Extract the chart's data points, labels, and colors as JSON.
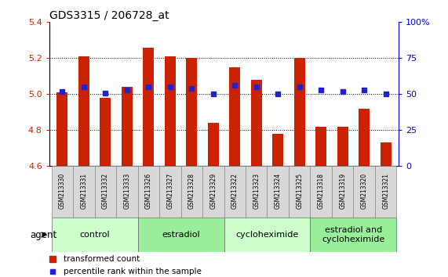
{
  "title": "GDS3315 / 206728_at",
  "samples": [
    "GSM213330",
    "GSM213331",
    "GSM213332",
    "GSM213333",
    "GSM213326",
    "GSM213327",
    "GSM213328",
    "GSM213329",
    "GSM213322",
    "GSM213323",
    "GSM213324",
    "GSM213325",
    "GSM213318",
    "GSM213319",
    "GSM213320",
    "GSM213321"
  ],
  "bar_values": [
    5.01,
    5.21,
    4.98,
    5.04,
    5.26,
    5.21,
    5.2,
    4.84,
    5.15,
    5.08,
    4.78,
    5.2,
    4.82,
    4.82,
    4.92,
    4.73
  ],
  "percentile_values": [
    52,
    55,
    51,
    53,
    55,
    55,
    54,
    50,
    56,
    55,
    50,
    55,
    53,
    52,
    53,
    50
  ],
  "ymin": 4.6,
  "ymax": 5.4,
  "yticks": [
    4.6,
    4.8,
    5.0,
    5.2,
    5.4
  ],
  "bar_color": "#cc2200",
  "dot_color": "#2222cc",
  "groups": [
    {
      "label": "control",
      "start": 0,
      "end": 3,
      "color": "#ccffcc"
    },
    {
      "label": "estradiol",
      "start": 4,
      "end": 7,
      "color": "#99ee99"
    },
    {
      "label": "cycloheximide",
      "start": 8,
      "end": 11,
      "color": "#ccffcc"
    },
    {
      "label": "estradiol and\ncycloheximide",
      "start": 12,
      "end": 15,
      "color": "#99ee99"
    }
  ],
  "right_yticks": [
    0,
    25,
    50,
    75,
    100
  ],
  "right_yticklabels": [
    "0",
    "25",
    "50",
    "75",
    "100%"
  ],
  "legend_bar_label": "transformed count",
  "legend_dot_label": "percentile rank within the sample",
  "agent_label": "agent",
  "bg_color": "#ffffff",
  "tick_label_color_left": "#cc2200",
  "tick_label_color_right": "#0000ff",
  "title_fontsize": 10,
  "group_label_fontsize": 8,
  "sample_fontsize": 5.5,
  "legend_fontsize": 7.5
}
